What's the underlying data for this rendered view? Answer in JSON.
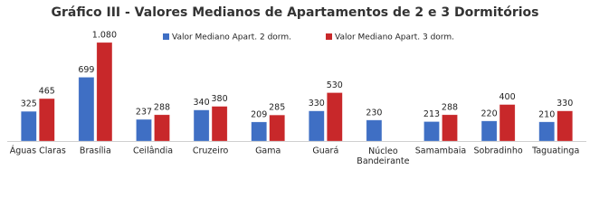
{
  "chart_data": {
    "type": "bar",
    "title": "Gráfico III - Valores Medianos de Apartamentos de 2 e 3 Dormitórios",
    "categories": [
      "Águas Claras",
      "Brasília",
      "Ceilândia",
      "Cruzeiro",
      "Gama",
      "Guará",
      "Núcleo Bandeirante",
      "Samambaia",
      "Sobradinho",
      "Taguatinga"
    ],
    "series": [
      {
        "name": "Valor Mediano Apart. 2 dorm.",
        "color": "#3f6fc4",
        "values": [
          325,
          699,
          237,
          340,
          209,
          330,
          230,
          213,
          220,
          210
        ]
      },
      {
        "name": "Valor Mediano Apart. 3 dorm.",
        "color": "#c8282a",
        "values": [
          465,
          1080,
          288,
          380,
          285,
          530,
          null,
          288,
          400,
          330
        ],
        "value_labels": [
          "465",
          "1.080",
          "288",
          "380",
          "285",
          "530",
          null,
          "288",
          "400",
          "330"
        ]
      }
    ]
  }
}
